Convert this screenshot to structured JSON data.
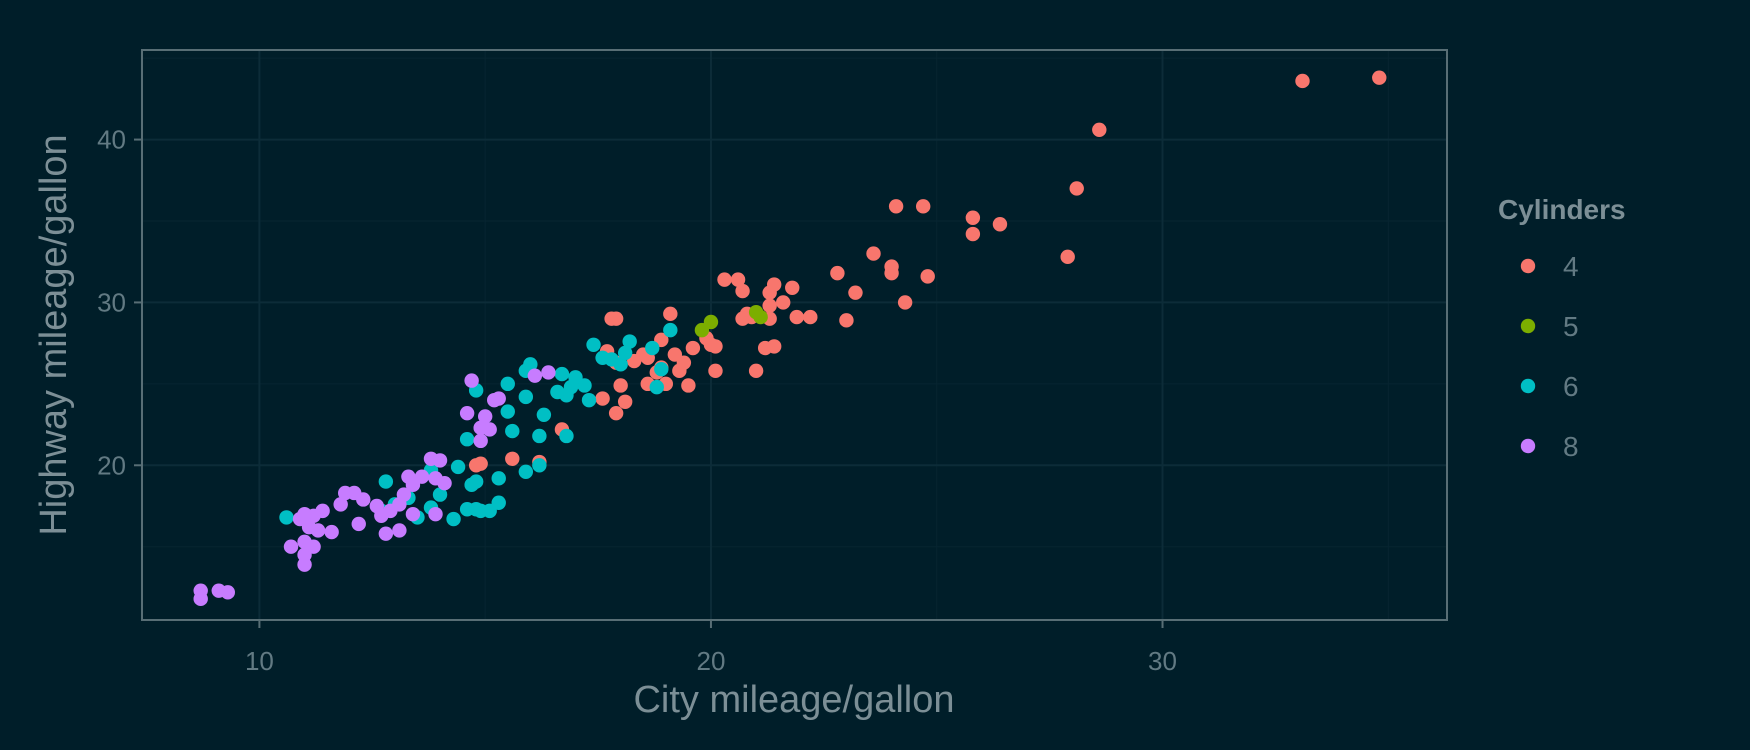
{
  "chart_data": {
    "type": "scatter",
    "title": "",
    "xlabel": "City mileage/gallon",
    "ylabel": "Highway mileage/gallon",
    "xlim": [
      7.4,
      36.3
    ],
    "ylim": [
      10.5,
      45.5
    ],
    "x_ticks": [
      10,
      20,
      30
    ],
    "y_ticks": [
      20,
      30,
      40
    ],
    "x_tick_labels": [
      "10",
      "20",
      "30"
    ],
    "y_tick_labels": [
      "20",
      "30",
      "40"
    ],
    "grid": true,
    "legend": {
      "title": "Cylinders",
      "position": "right"
    },
    "background_color": "#001e29",
    "panel_color": "#001e29",
    "grid_color": "#0c2c38",
    "axis_line_color": "#586e75",
    "series": [
      {
        "name": "4",
        "color": "#f8766d",
        "points": [
          [
            34.8,
            43.8
          ],
          [
            33.1,
            43.6
          ],
          [
            28.6,
            40.6
          ],
          [
            28.1,
            37.0
          ],
          [
            27.9,
            32.8
          ],
          [
            26.4,
            34.8
          ],
          [
            25.8,
            34.2
          ],
          [
            25.8,
            35.2
          ],
          [
            24.8,
            31.6
          ],
          [
            24.7,
            35.9
          ],
          [
            24.3,
            30.0
          ],
          [
            24.1,
            35.9
          ],
          [
            24.0,
            32.2
          ],
          [
            24.0,
            31.8
          ],
          [
            23.6,
            33.0
          ],
          [
            23.2,
            30.6
          ],
          [
            23.0,
            28.9
          ],
          [
            22.8,
            31.8
          ],
          [
            22.2,
            29.1
          ],
          [
            21.9,
            29.1
          ],
          [
            21.8,
            30.9
          ],
          [
            21.6,
            30.0
          ],
          [
            21.4,
            31.1
          ],
          [
            21.4,
            27.3
          ],
          [
            21.3,
            30.6
          ],
          [
            21.3,
            29.8
          ],
          [
            21.3,
            29.0
          ],
          [
            21.2,
            27.2
          ],
          [
            21.0,
            25.8
          ],
          [
            20.9,
            29.1
          ],
          [
            20.8,
            29.3
          ],
          [
            20.7,
            29.0
          ],
          [
            20.7,
            30.7
          ],
          [
            20.6,
            31.4
          ],
          [
            20.3,
            31.4
          ],
          [
            20.1,
            27.3
          ],
          [
            20.1,
            25.8
          ],
          [
            20.0,
            27.4
          ],
          [
            19.9,
            27.8
          ],
          [
            19.6,
            27.2
          ],
          [
            19.5,
            24.9
          ],
          [
            19.4,
            26.3
          ],
          [
            19.3,
            25.8
          ],
          [
            19.2,
            26.8
          ],
          [
            19.1,
            29.3
          ],
          [
            19.0,
            25.0
          ],
          [
            18.9,
            27.7
          ],
          [
            18.9,
            26.0
          ],
          [
            18.8,
            25.7
          ],
          [
            18.6,
            26.6
          ],
          [
            18.6,
            25.0
          ],
          [
            18.5,
            26.8
          ],
          [
            18.3,
            26.4
          ],
          [
            18.0,
            24.9
          ],
          [
            17.9,
            29.0
          ],
          [
            17.8,
            29.0
          ],
          [
            17.7,
            27.0
          ],
          [
            17.9,
            26.3
          ],
          [
            17.6,
            24.1
          ],
          [
            18.1,
            23.9
          ],
          [
            17.9,
            23.2
          ],
          [
            16.7,
            22.2
          ],
          [
            16.2,
            20.2
          ],
          [
            15.6,
            20.4
          ],
          [
            14.9,
            20.1
          ],
          [
            14.8,
            20.0
          ]
        ]
      },
      {
        "name": "5",
        "color": "#7cae00",
        "points": [
          [
            20.0,
            28.8
          ],
          [
            19.8,
            28.3
          ],
          [
            21.0,
            29.4
          ],
          [
            21.1,
            29.1
          ]
        ]
      },
      {
        "name": "6",
        "color": "#00bfc4",
        "points": [
          [
            19.1,
            28.3
          ],
          [
            18.7,
            27.2
          ],
          [
            18.8,
            24.8
          ],
          [
            18.9,
            25.9
          ],
          [
            18.2,
            27.6
          ],
          [
            18.0,
            26.2
          ],
          [
            17.8,
            26.5
          ],
          [
            17.4,
            27.4
          ],
          [
            17.2,
            24.9
          ],
          [
            17.3,
            24.0
          ],
          [
            17.0,
            25.4
          ],
          [
            16.9,
            24.8
          ],
          [
            16.8,
            24.3
          ],
          [
            16.7,
            25.6
          ],
          [
            16.6,
            24.5
          ],
          [
            16.0,
            26.2
          ],
          [
            15.9,
            25.8
          ],
          [
            15.9,
            24.2
          ],
          [
            15.5,
            25.0
          ],
          [
            15.5,
            23.3
          ],
          [
            15.6,
            22.1
          ],
          [
            16.3,
            23.1
          ],
          [
            16.2,
            21.8
          ],
          [
            16.2,
            20.0
          ],
          [
            15.9,
            19.6
          ],
          [
            15.3,
            19.2
          ],
          [
            15.3,
            17.7
          ],
          [
            14.9,
            17.2
          ],
          [
            14.8,
            19.0
          ],
          [
            14.7,
            18.8
          ],
          [
            14.6,
            21.6
          ],
          [
            14.4,
            19.9
          ],
          [
            14.3,
            16.7
          ],
          [
            14.0,
            18.2
          ],
          [
            13.8,
            19.7
          ],
          [
            13.8,
            17.4
          ],
          [
            13.5,
            16.8
          ],
          [
            13.3,
            18.0
          ],
          [
            13.0,
            17.6
          ],
          [
            12.8,
            19.0
          ],
          [
            12.7,
            17.2
          ],
          [
            10.6,
            16.8
          ],
          [
            16.8,
            21.8
          ],
          [
            17.6,
            26.6
          ],
          [
            18.1,
            26.9
          ],
          [
            14.8,
            24.6
          ],
          [
            14.6,
            17.3
          ],
          [
            15.1,
            17.2
          ],
          [
            14.8,
            17.3
          ]
        ]
      },
      {
        "name": "8",
        "color": "#c77cff",
        "points": [
          [
            16.4,
            25.7
          ],
          [
            16.1,
            25.5
          ],
          [
            14.7,
            25.2
          ],
          [
            15.3,
            24.1
          ],
          [
            15.0,
            23.0
          ],
          [
            14.9,
            22.3
          ],
          [
            14.6,
            23.2
          ],
          [
            15.1,
            22.2
          ],
          [
            14.9,
            21.5
          ],
          [
            14.0,
            20.3
          ],
          [
            13.8,
            20.4
          ],
          [
            13.9,
            19.2
          ],
          [
            14.1,
            18.9
          ],
          [
            13.6,
            19.3
          ],
          [
            13.3,
            19.3
          ],
          [
            13.4,
            18.8
          ],
          [
            13.2,
            18.2
          ],
          [
            13.1,
            17.6
          ],
          [
            12.9,
            17.2
          ],
          [
            12.7,
            16.9
          ],
          [
            12.6,
            17.5
          ],
          [
            12.3,
            17.9
          ],
          [
            12.1,
            18.3
          ],
          [
            11.9,
            18.3
          ],
          [
            11.8,
            17.6
          ],
          [
            11.4,
            17.2
          ],
          [
            11.2,
            16.9
          ],
          [
            11.0,
            17.0
          ],
          [
            10.9,
            16.7
          ],
          [
            11.1,
            16.2
          ],
          [
            11.3,
            16.0
          ],
          [
            11.6,
            15.9
          ],
          [
            11.0,
            15.3
          ],
          [
            10.7,
            15.0
          ],
          [
            11.0,
            14.5
          ],
          [
            11.0,
            13.9
          ],
          [
            11.2,
            15.0
          ],
          [
            12.2,
            16.4
          ],
          [
            12.8,
            15.8
          ],
          [
            13.1,
            16.0
          ],
          [
            13.4,
            17.0
          ],
          [
            13.9,
            17.0
          ],
          [
            9.3,
            12.2
          ],
          [
            9.1,
            12.3
          ],
          [
            8.7,
            12.3
          ],
          [
            8.7,
            11.8
          ],
          [
            15.2,
            24.0
          ]
        ]
      }
    ]
  }
}
